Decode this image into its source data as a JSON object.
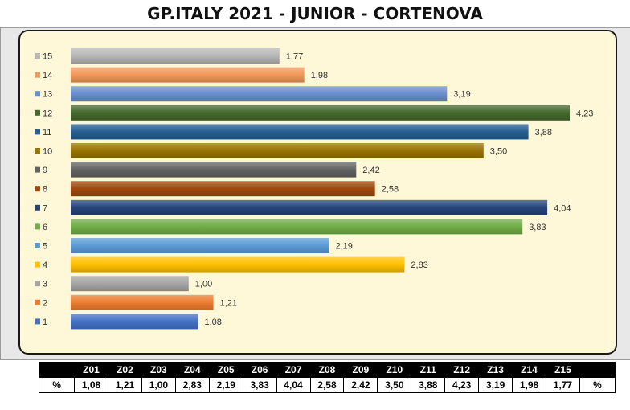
{
  "title": "GP.ITALY 2021 - JUNIOR - CORTENOVA",
  "chart_data": {
    "type": "bar",
    "orientation": "horizontal",
    "title": "GP.ITALY 2021 - JUNIOR - CORTENOVA",
    "categories": [
      "1",
      "2",
      "3",
      "4",
      "5",
      "6",
      "7",
      "8",
      "9",
      "10",
      "11",
      "12",
      "13",
      "14",
      "15"
    ],
    "values": [
      1.08,
      1.21,
      1.0,
      2.83,
      2.19,
      3.83,
      4.04,
      2.58,
      2.42,
      3.5,
      3.88,
      4.23,
      3.19,
      1.98,
      1.77
    ],
    "value_labels": [
      "1,08",
      "1,21",
      "1,00",
      "2,83",
      "2,19",
      "3,83",
      "4,04",
      "2,58",
      "2,42",
      "3,50",
      "3,88",
      "4,23",
      "3,19",
      "1,98",
      "1,77"
    ],
    "colors": [
      "#4472c4",
      "#ed7d31",
      "#a5a5a5",
      "#ffc000",
      "#5b9bd5",
      "#70ad47",
      "#264478",
      "#9e480e",
      "#636363",
      "#997300",
      "#255e91",
      "#43682b",
      "#698ed0",
      "#f1975a",
      "#b7b7b7"
    ],
    "xlim": [
      0,
      4.5
    ],
    "grid": false,
    "legend": "left"
  },
  "table": {
    "header": [
      "",
      "Z01",
      "Z02",
      "Z03",
      "Z04",
      "Z05",
      "Z06",
      "Z07",
      "Z08",
      "Z09",
      "Z10",
      "Z11",
      "Z12",
      "Z13",
      "Z14",
      "Z15",
      ""
    ],
    "values": [
      "%",
      "1,08",
      "1,21",
      "1,00",
      "2,83",
      "2,19",
      "3,83",
      "4,04",
      "2,58",
      "2,42",
      "3,50",
      "3,88",
      "4,23",
      "3,19",
      "1,98",
      "1,77",
      "%"
    ]
  }
}
